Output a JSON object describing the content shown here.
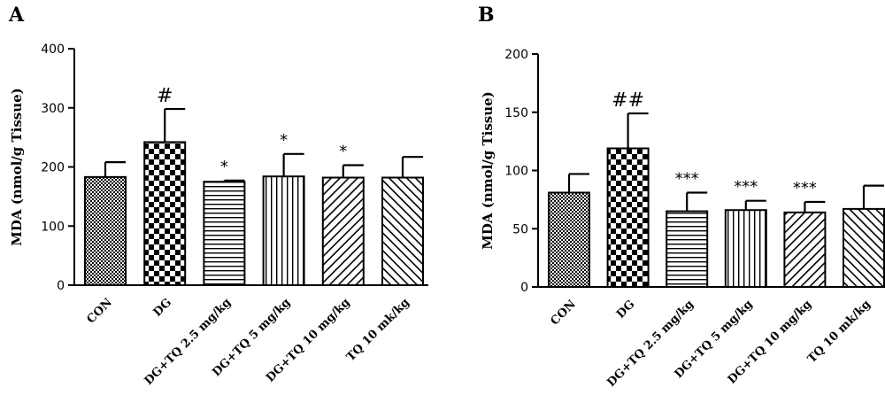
{
  "chart_data": [
    {
      "type": "bar",
      "panel_label": "A",
      "ylabel": "MDA (nmol/g Tissue)",
      "xlabel": "",
      "ylim": [
        0,
        400
      ],
      "yticks": [
        0,
        100,
        200,
        300,
        400
      ],
      "categories": [
        "CON",
        "DG",
        "DG+TQ 2.5 mg/kg",
        "DG+TQ 5 mg/kg",
        "DG+TQ 10 mg/kg",
        "TQ 10 mk/kg"
      ],
      "values": [
        183,
        242,
        175,
        184,
        182,
        182
      ],
      "errors": [
        25,
        56,
        2,
        38,
        21,
        35
      ],
      "annotations": [
        "",
        "#",
        "*",
        "*",
        "*",
        ""
      ],
      "patterns": [
        "dots",
        "checker",
        "hlines",
        "vlines",
        "diag-right",
        "diag-left"
      ],
      "grid": false
    },
    {
      "type": "bar",
      "panel_label": "B",
      "ylabel": "MDA (nmol/g Tissue)",
      "xlabel": "",
      "ylim": [
        0,
        200
      ],
      "yticks": [
        0,
        50,
        100,
        150,
        200
      ],
      "categories": [
        "CON",
        "DG",
        "DG+TQ 2.5 mg/kg",
        "DG+TQ 5 mg/kg",
        "DG+TQ 10 mg/kg",
        "TQ 10 mk/kg"
      ],
      "values": [
        81,
        119,
        65,
        66,
        64,
        67
      ],
      "errors": [
        16,
        30,
        16,
        8,
        9,
        20
      ],
      "annotations": [
        "",
        "##",
        "***",
        "***",
        "***",
        ""
      ],
      "patterns": [
        "dots",
        "checker",
        "hlines",
        "vlines",
        "diag-right",
        "diag-left"
      ],
      "grid": false
    }
  ]
}
